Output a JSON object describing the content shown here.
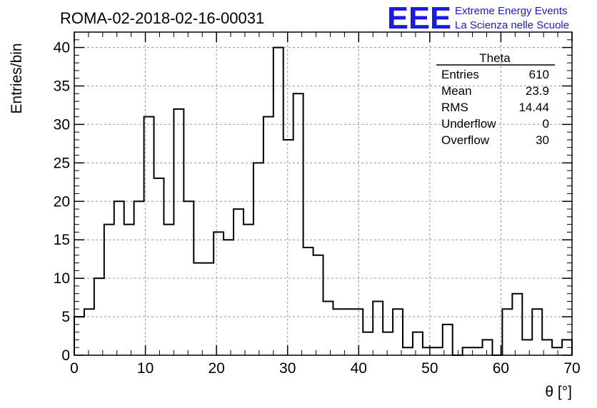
{
  "header": {
    "run_title": "ROMA-02-2018-02-16-00031",
    "logo": "EEE",
    "logo_line1": "Extreme Energy Events",
    "logo_line2": "La Scienza nelle Scuole",
    "logo_color": "#1a1ae6"
  },
  "stats": {
    "title": "Theta",
    "rows": [
      {
        "label": "Entries",
        "value": "610"
      },
      {
        "label": "Mean",
        "value": "23.9"
      },
      {
        "label": "RMS",
        "value": "14.44"
      },
      {
        "label": "Underflow",
        "value": "0"
      },
      {
        "label": "Overflow",
        "value": "30"
      }
    ]
  },
  "chart_data": {
    "type": "bar",
    "histogram": true,
    "xlabel": "θ [°]",
    "ylabel": "Entries/bin",
    "xlim": [
      0,
      70
    ],
    "ylim": [
      0,
      42
    ],
    "grid": true,
    "bin_width": 1.4,
    "x_ticks": [
      0,
      10,
      20,
      30,
      40,
      50,
      60,
      70
    ],
    "y_ticks": [
      0,
      5,
      10,
      15,
      20,
      25,
      30,
      35,
      40
    ],
    "values": [
      5,
      6,
      10,
      17,
      20,
      17,
      20,
      31,
      23,
      17,
      32,
      20,
      12,
      12,
      16,
      15,
      19,
      17,
      25,
      31,
      40,
      28,
      34,
      14,
      13,
      7,
      6,
      6,
      6,
      3,
      7,
      3,
      6,
      1,
      3,
      1,
      1,
      4,
      0,
      1,
      1,
      2,
      0,
      6,
      8,
      2,
      6,
      2,
      1,
      2
    ]
  }
}
